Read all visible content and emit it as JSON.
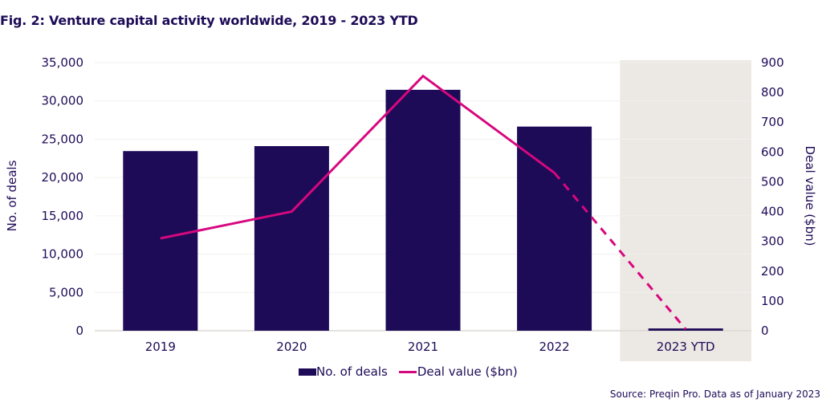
{
  "title": "Fig. 2: Venture capital activity worldwide, 2019 - 2023 YTD",
  "source": "Source: Preqin Pro. Data as of January 2023",
  "colors": {
    "bar": "#1e0b57",
    "line": "#d6087f",
    "highlight_bg": "#ece8e3",
    "grid": "#f2f0ee",
    "text": "#1e0b57"
  },
  "chart_data": {
    "type": "bar",
    "title": "Fig. 2: Venture capital activity worldwide, 2019 - 2023 YTD",
    "categories": [
      "2019",
      "2020",
      "2021",
      "2022",
      "2023 YTD"
    ],
    "highlighted_category": "2023 YTD",
    "series": [
      {
        "name": "No. of deals",
        "type": "bar",
        "axis": "left",
        "values": [
          23450,
          24100,
          31450,
          26650,
          300
        ]
      },
      {
        "name": "Deal value ($bn)",
        "type": "line",
        "axis": "right",
        "values": [
          310,
          400,
          855,
          530,
          5
        ],
        "dashed_from_index": 3
      }
    ],
    "y_left": {
      "label": "No. of deals",
      "range": [
        0,
        35000
      ],
      "ticks": [
        "0",
        "5,000",
        "10,000",
        "15,000",
        "20,000",
        "25,000",
        "30,000",
        "35,000"
      ],
      "tick_values": [
        0,
        5000,
        10000,
        15000,
        20000,
        25000,
        30000,
        35000
      ]
    },
    "y_right": {
      "label": "Deal value ($bn)",
      "range": [
        0,
        900
      ],
      "ticks": [
        "0",
        "100",
        "200",
        "300",
        "400",
        "500",
        "600",
        "700",
        "800",
        "900"
      ],
      "tick_values": [
        0,
        100,
        200,
        300,
        400,
        500,
        600,
        700,
        800,
        900
      ]
    },
    "grid": true,
    "legend_position": "bottom-center",
    "legend": [
      "No. of deals",
      "Deal value ($bn)"
    ]
  }
}
